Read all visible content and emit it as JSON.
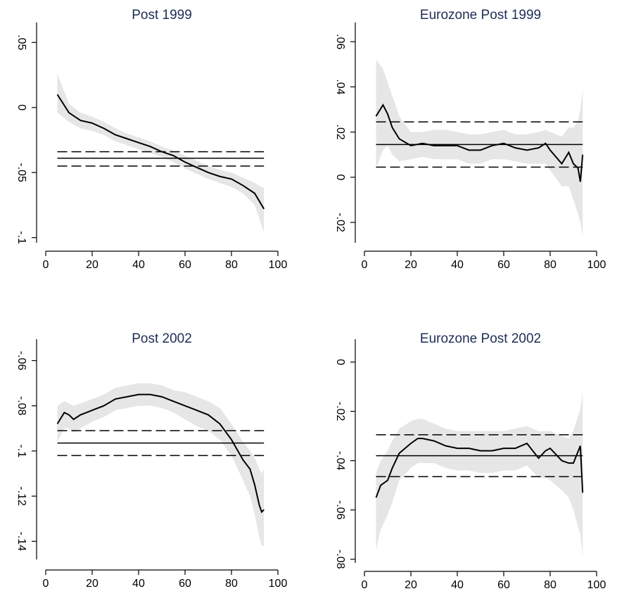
{
  "chart_data": [
    {
      "type": "line",
      "title": "Post 1999",
      "x": [
        5,
        10,
        15,
        20,
        25,
        30,
        35,
        40,
        45,
        50,
        55,
        60,
        65,
        70,
        75,
        80,
        85,
        90,
        94
      ],
      "series": [
        {
          "color": "#000000",
          "values": [
            0.01,
            -0.004,
            -0.01,
            -0.012,
            -0.016,
            -0.021,
            -0.024,
            -0.027,
            -0.03,
            -0.034,
            -0.037,
            -0.042,
            -0.046,
            -0.05,
            -0.053,
            -0.055,
            -0.06,
            -0.066,
            -0.078
          ]
        }
      ],
      "band_upper": [
        0.026,
        0.003,
        -0.004,
        -0.007,
        -0.011,
        -0.016,
        -0.02,
        -0.023,
        -0.026,
        -0.03,
        -0.033,
        -0.037,
        -0.041,
        -0.045,
        -0.048,
        -0.05,
        -0.054,
        -0.058,
        -0.062
      ],
      "band_lower": [
        -0.004,
        -0.011,
        -0.016,
        -0.018,
        -0.021,
        -0.026,
        -0.029,
        -0.032,
        -0.035,
        -0.038,
        -0.042,
        -0.047,
        -0.051,
        -0.055,
        -0.058,
        -0.061,
        -0.066,
        -0.075,
        -0.096
      ],
      "band_color": "#e6e6e6",
      "hlines": [
        {
          "value": -0.039,
          "style": "solid"
        },
        {
          "value": -0.034,
          "style": "dashed"
        },
        {
          "value": -0.045,
          "style": "dashed"
        }
      ],
      "xlim": [
        0,
        100
      ],
      "xticks": [
        0,
        20,
        40,
        60,
        80,
        100
      ],
      "ylim": [
        -0.104,
        0.061
      ],
      "yticks": [
        {
          "value": 0.05,
          "label": ".05"
        },
        0,
        {
          "value": -0.05,
          "label": "-.05"
        },
        {
          "value": -0.1,
          "label": "-.1"
        }
      ]
    },
    {
      "type": "line",
      "title": "Eurozone Post 1999",
      "x": [
        5,
        8,
        10,
        12,
        15,
        20,
        25,
        30,
        35,
        40,
        45,
        50,
        55,
        60,
        65,
        70,
        75,
        78,
        80,
        85,
        88,
        90,
        92,
        93,
        94
      ],
      "series": [
        {
          "color": "#000000",
          "values": [
            0.027,
            0.032,
            0.028,
            0.022,
            0.017,
            0.014,
            0.015,
            0.014,
            0.014,
            0.014,
            0.012,
            0.012,
            0.014,
            0.015,
            0.013,
            0.012,
            0.013,
            0.015,
            0.012,
            0.006,
            0.011,
            0.006,
            0.004,
            -0.002,
            0.01
          ]
        }
      ],
      "band_upper": [
        0.052,
        0.048,
        0.042,
        0.036,
        0.027,
        0.02,
        0.02,
        0.021,
        0.021,
        0.02,
        0.019,
        0.019,
        0.02,
        0.021,
        0.019,
        0.019,
        0.02,
        0.021,
        0.02,
        0.018,
        0.022,
        0.022,
        0.025,
        0.03,
        0.039
      ],
      "band_lower": [
        0.004,
        0.012,
        0.014,
        0.01,
        0.007,
        0.008,
        0.009,
        0.008,
        0.008,
        0.008,
        0.006,
        0.006,
        0.008,
        0.008,
        0.007,
        0.006,
        0.006,
        0.006,
        0.003,
        -0.004,
        -0.004,
        -0.01,
        -0.016,
        -0.02,
        -0.026
      ],
      "band_color": "#e6e6e6",
      "hlines": [
        {
          "value": 0.0145,
          "style": "solid"
        },
        {
          "value": 0.0245,
          "style": "dashed"
        },
        {
          "value": 0.0045,
          "style": "dashed"
        }
      ],
      "xlim": [
        0,
        100
      ],
      "xticks": [
        0,
        20,
        40,
        60,
        80,
        100
      ],
      "ylim": [
        -0.029,
        0.066
      ],
      "yticks": [
        {
          "value": 0.06,
          "label": ".06"
        },
        {
          "value": 0.04,
          "label": ".04"
        },
        {
          "value": 0.02,
          "label": ".02"
        },
        0,
        {
          "value": -0.02,
          "label": "-.02"
        }
      ]
    },
    {
      "type": "line",
      "title": "Post 2002",
      "x": [
        5,
        8,
        10,
        12,
        15,
        20,
        25,
        30,
        35,
        40,
        45,
        50,
        55,
        60,
        65,
        70,
        75,
        80,
        85,
        88,
        90,
        92,
        93,
        94
      ],
      "series": [
        {
          "color": "#000000",
          "values": [
            -0.088,
            -0.083,
            -0.084,
            -0.086,
            -0.084,
            -0.082,
            -0.08,
            -0.077,
            -0.076,
            -0.075,
            -0.075,
            -0.076,
            -0.078,
            -0.08,
            -0.082,
            -0.084,
            -0.088,
            -0.095,
            -0.104,
            -0.108,
            -0.115,
            -0.124,
            -0.127,
            -0.126
          ]
        }
      ],
      "band_upper": [
        -0.08,
        -0.078,
        -0.079,
        -0.08,
        -0.079,
        -0.077,
        -0.075,
        -0.072,
        -0.071,
        -0.07,
        -0.07,
        -0.071,
        -0.073,
        -0.074,
        -0.076,
        -0.078,
        -0.081,
        -0.088,
        -0.096,
        -0.1,
        -0.103,
        -0.108,
        -0.11,
        -0.108
      ],
      "band_lower": [
        -0.096,
        -0.09,
        -0.09,
        -0.092,
        -0.09,
        -0.087,
        -0.085,
        -0.082,
        -0.081,
        -0.08,
        -0.08,
        -0.081,
        -0.083,
        -0.086,
        -0.089,
        -0.091,
        -0.095,
        -0.102,
        -0.113,
        -0.12,
        -0.128,
        -0.138,
        -0.142,
        -0.142
      ],
      "band_color": "#e6e6e6",
      "hlines": [
        {
          "value": -0.0965,
          "style": "solid"
        },
        {
          "value": -0.091,
          "style": "dashed"
        },
        {
          "value": -0.102,
          "style": "dashed"
        }
      ],
      "xlim": [
        0,
        100
      ],
      "xticks": [
        0,
        20,
        40,
        60,
        80,
        100
      ],
      "ylim": [
        -0.148,
        -0.053
      ],
      "yticks": [
        {
          "value": -0.06,
          "label": "-.06"
        },
        {
          "value": -0.08,
          "label": "-.08"
        },
        {
          "value": -0.1,
          "label": "-.1"
        },
        {
          "value": -0.12,
          "label": "-.12"
        },
        {
          "value": -0.14,
          "label": "-.14"
        }
      ]
    },
    {
      "type": "line",
      "title": "Eurozone Post 2002",
      "x": [
        5,
        7,
        10,
        12,
        15,
        20,
        23,
        25,
        30,
        35,
        40,
        45,
        50,
        55,
        60,
        65,
        70,
        75,
        78,
        80,
        85,
        88,
        90,
        93,
        94
      ],
      "series": [
        {
          "color": "#000000",
          "values": [
            -0.055,
            -0.05,
            -0.048,
            -0.043,
            -0.037,
            -0.033,
            -0.031,
            -0.031,
            -0.032,
            -0.034,
            -0.035,
            -0.035,
            -0.036,
            -0.036,
            -0.035,
            -0.035,
            -0.033,
            -0.039,
            -0.036,
            -0.035,
            -0.04,
            -0.041,
            -0.041,
            -0.034,
            -0.053
          ]
        }
      ],
      "band_upper": [
        -0.045,
        -0.04,
        -0.036,
        -0.032,
        -0.027,
        -0.024,
        -0.023,
        -0.023,
        -0.025,
        -0.027,
        -0.028,
        -0.028,
        -0.028,
        -0.028,
        -0.028,
        -0.027,
        -0.026,
        -0.028,
        -0.028,
        -0.028,
        -0.03,
        -0.031,
        -0.028,
        -0.019,
        -0.012
      ],
      "band_lower": [
        -0.076,
        -0.068,
        -0.062,
        -0.057,
        -0.048,
        -0.043,
        -0.041,
        -0.041,
        -0.041,
        -0.043,
        -0.044,
        -0.044,
        -0.045,
        -0.045,
        -0.044,
        -0.044,
        -0.042,
        -0.047,
        -0.047,
        -0.048,
        -0.052,
        -0.055,
        -0.06,
        -0.07,
        -0.079
      ],
      "band_color": "#e6e6e6",
      "hlines": [
        {
          "value": -0.038,
          "style": "solid"
        },
        {
          "value": -0.0295,
          "style": "dashed"
        },
        {
          "value": -0.0465,
          "style": "dashed"
        }
      ],
      "xlim": [
        0,
        100
      ],
      "xticks": [
        0,
        20,
        40,
        60,
        80,
        100
      ],
      "ylim": [
        -0.0815,
        0.007
      ],
      "yticks": [
        0,
        {
          "value": -0.02,
          "label": "-.02"
        },
        {
          "value": -0.04,
          "label": "-.04"
        },
        {
          "value": -0.06,
          "label": "-.06"
        },
        {
          "value": -0.08,
          "label": "-.08"
        }
      ]
    }
  ]
}
